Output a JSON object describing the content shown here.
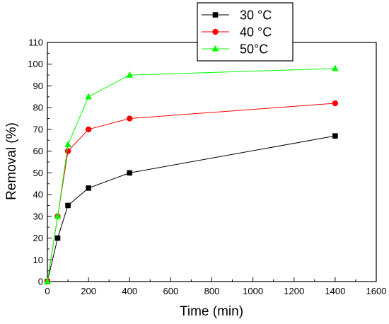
{
  "chart_data": {
    "type": "line",
    "title": "",
    "xlabel": "Time (min)",
    "ylabel": "Removal (%)",
    "xlim": [
      0,
      1600
    ],
    "ylim": [
      0,
      110
    ],
    "xticks": [
      0,
      200,
      400,
      600,
      800,
      1000,
      1200,
      1400,
      1600
    ],
    "yticks": [
      0,
      10,
      20,
      30,
      40,
      50,
      60,
      70,
      80,
      90,
      100,
      110
    ],
    "grid": false,
    "legend_position": "top-center",
    "series": [
      {
        "name": "30 °C",
        "color": "#000000",
        "marker": "square",
        "x": [
          0,
          50,
          100,
          200,
          400,
          1400
        ],
        "y": [
          0,
          20,
          35,
          43,
          50,
          67
        ]
      },
      {
        "name": "40 °C",
        "color": "#ff0000",
        "marker": "circle",
        "x": [
          0,
          50,
          100,
          200,
          400,
          1400
        ],
        "y": [
          0,
          30,
          60,
          70,
          75,
          82
        ]
      },
      {
        "name": "50°C",
        "color": "#00ff00",
        "marker": "triangle",
        "x": [
          0,
          50,
          100,
          200,
          400,
          1400
        ],
        "y": [
          0,
          30,
          63,
          85,
          95,
          98
        ]
      }
    ]
  }
}
